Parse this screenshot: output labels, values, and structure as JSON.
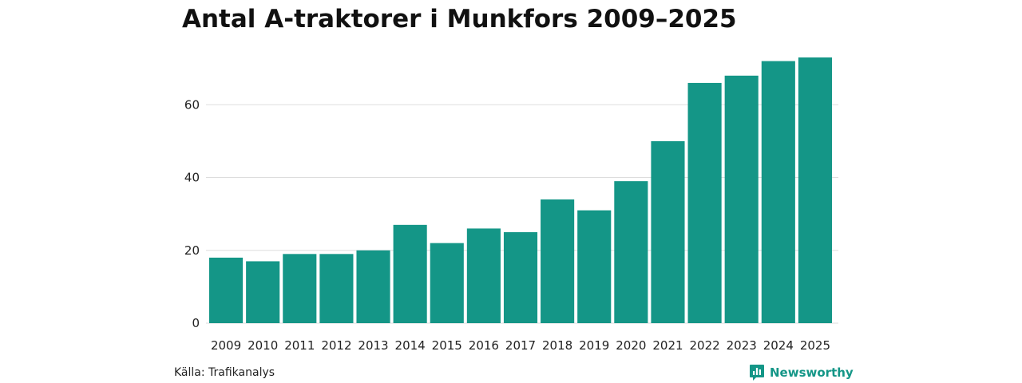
{
  "chart_data": {
    "type": "bar",
    "title": "Antal A-traktorer i Munkfors 2009–2025",
    "xlabel": "",
    "ylabel": "",
    "categories": [
      "2009",
      "2010",
      "2011",
      "2012",
      "2013",
      "2014",
      "2015",
      "2016",
      "2017",
      "2018",
      "2019",
      "2020",
      "2021",
      "2022",
      "2023",
      "2024",
      "2025"
    ],
    "values": [
      18,
      17,
      19,
      19,
      20,
      27,
      22,
      26,
      25,
      34,
      31,
      39,
      50,
      66,
      68,
      72,
      73
    ],
    "ylim": [
      0,
      73
    ],
    "yticks": [
      0,
      20,
      40,
      60
    ],
    "grid": true,
    "legend": "none"
  },
  "footer": {
    "source": "Källa: Trafikanalys",
    "brand": "Newsworthy"
  },
  "colors": {
    "bar": "#149687",
    "grid": "#dddddd",
    "brand": "#149687"
  },
  "icons": {
    "brand_logo": "newsworthy-logo-icon"
  }
}
